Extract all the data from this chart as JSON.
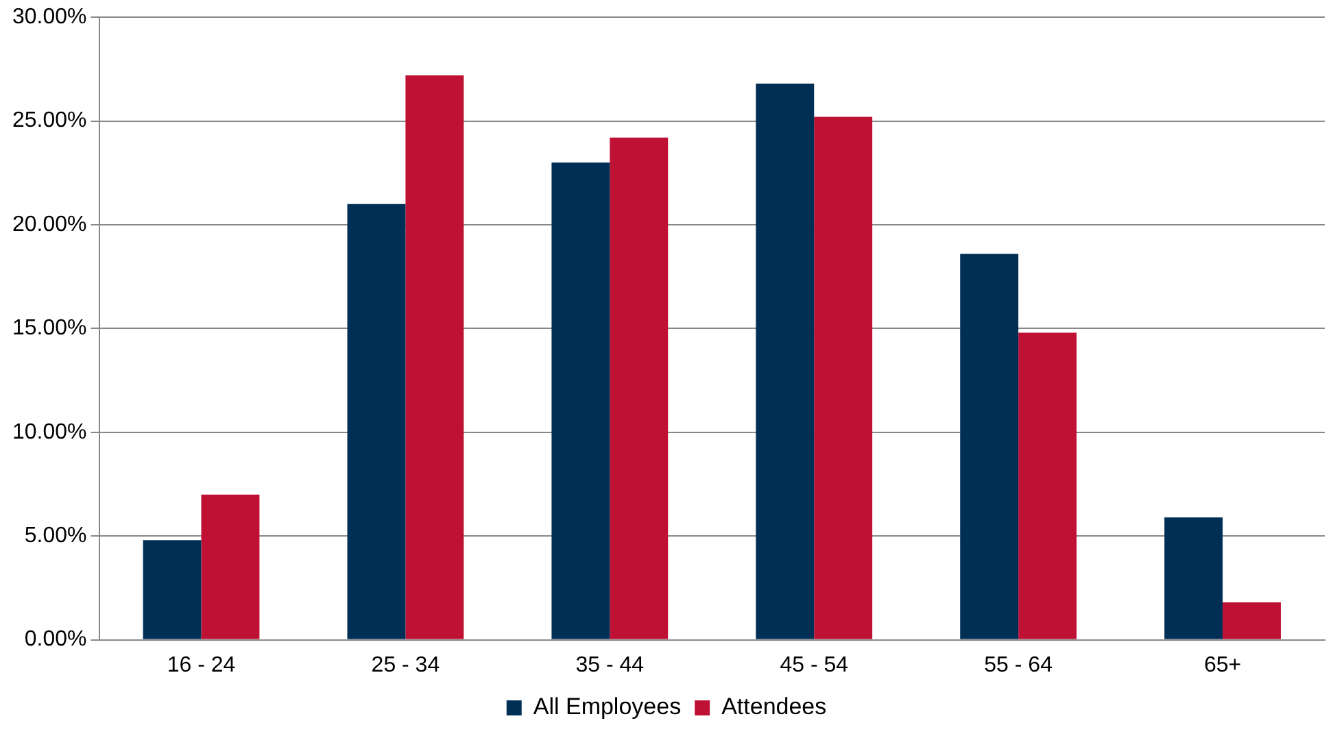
{
  "chart_data": {
    "type": "bar",
    "categories": [
      "16 - 24",
      "25 - 34",
      "35 - 44",
      "45 - 54",
      "55 - 64",
      "65+"
    ],
    "series": [
      {
        "name": "All Employees",
        "color": "#002f56",
        "values": [
          4.8,
          21.0,
          23.0,
          26.8,
          18.6,
          5.9
        ]
      },
      {
        "name": "Attendees",
        "color": "#be1134",
        "values": [
          7.0,
          27.2,
          24.2,
          25.2,
          14.8,
          1.8
        ]
      }
    ],
    "ylim": [
      0,
      30
    ],
    "yticks": [
      {
        "value": 0,
        "label": "0.00%"
      },
      {
        "value": 5,
        "label": "5.00%"
      },
      {
        "value": 10,
        "label": "10.00%"
      },
      {
        "value": 15,
        "label": "15.00%"
      },
      {
        "value": 20,
        "label": "20.00%"
      },
      {
        "value": 25,
        "label": "25.00%"
      },
      {
        "value": 30,
        "label": "30.00%"
      }
    ],
    "grid": "y",
    "legend": "bottom"
  }
}
